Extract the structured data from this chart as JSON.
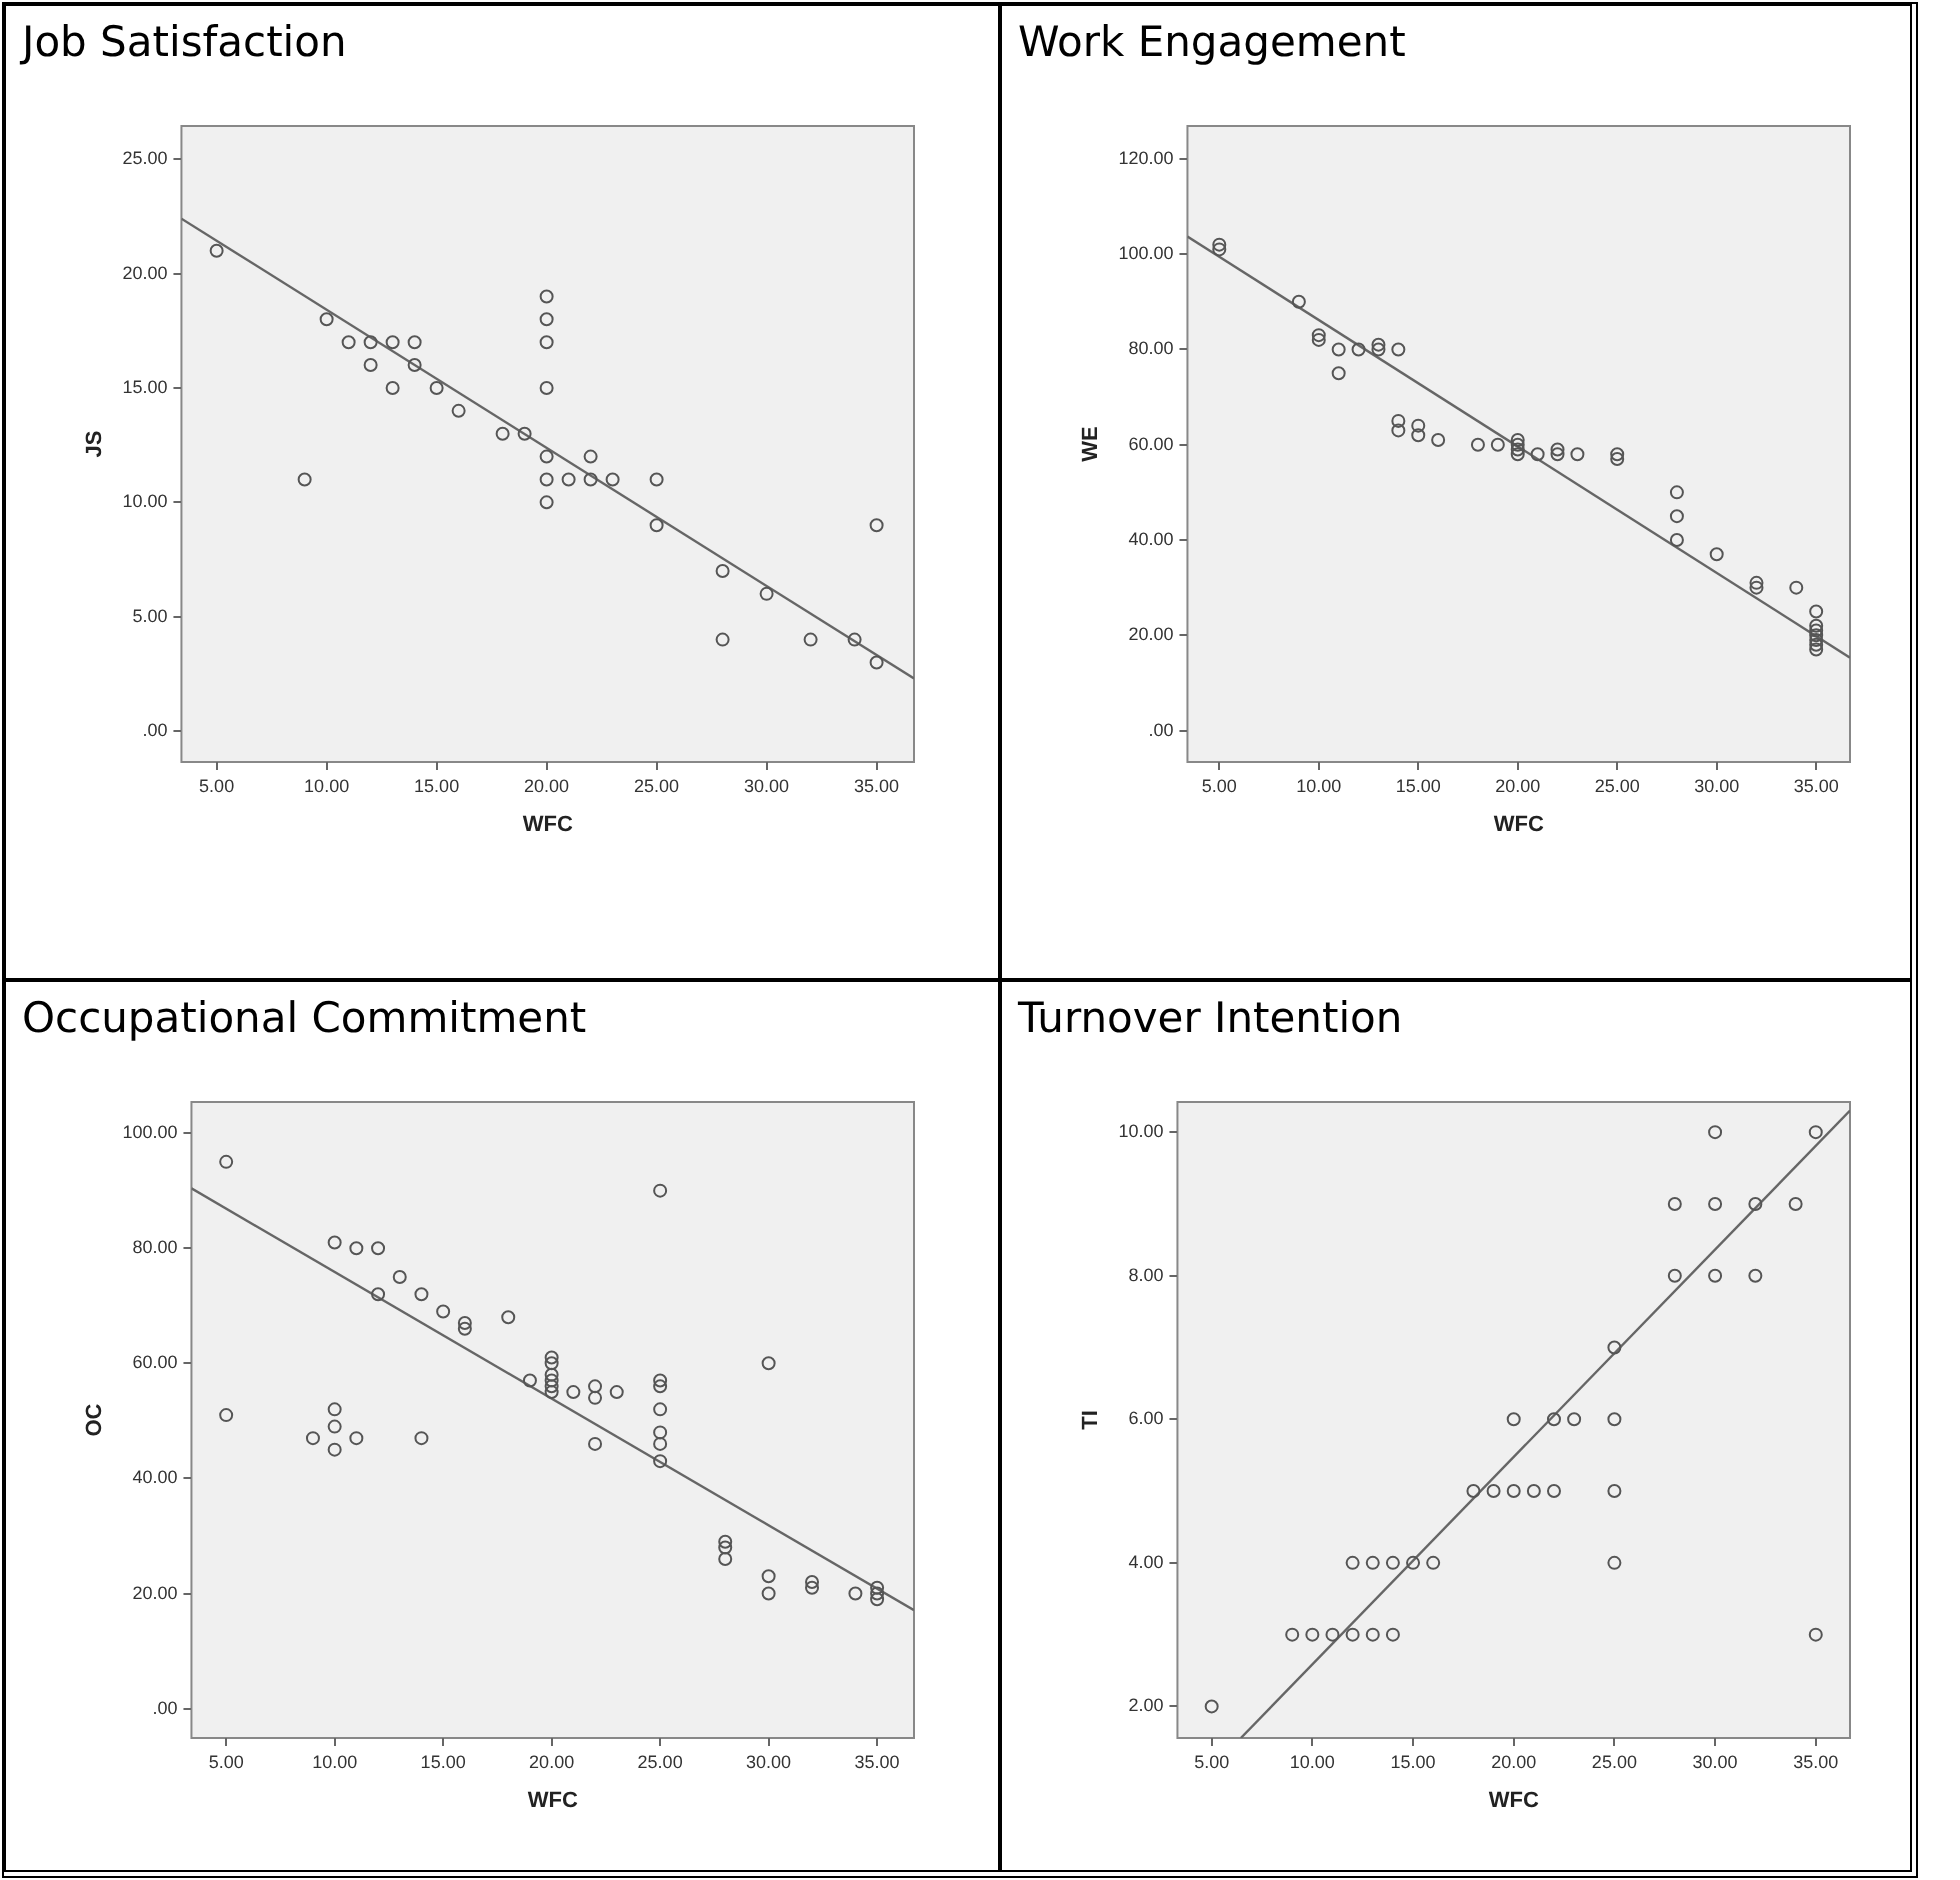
{
  "chart_data": [
    {
      "type": "scatter",
      "title": "Job Satisfaction",
      "xlabel": "WFC",
      "ylabel": "JS",
      "grid": false,
      "legend": false,
      "xlim": [
        3.4,
        36.7
      ],
      "xticks": [
        {
          "value": 5,
          "label": "5.00"
        },
        {
          "value": 10,
          "label": "10.00"
        },
        {
          "value": 15,
          "label": "15.00"
        },
        {
          "value": 20,
          "label": "20.00"
        },
        {
          "value": 25,
          "label": "25.00"
        },
        {
          "value": 30,
          "label": "30.00"
        },
        {
          "value": 35,
          "label": "35.00"
        }
      ],
      "ylim": [
        -1.35,
        26.45
      ],
      "yticks": [
        {
          "value": 0,
          "label": ".00"
        },
        {
          "value": 5,
          "label": "5.00"
        },
        {
          "value": 10,
          "label": "10.00"
        },
        {
          "value": 15,
          "label": "15.00"
        },
        {
          "value": 20,
          "label": "20.00"
        },
        {
          "value": 25,
          "label": "25.00"
        }
      ],
      "series": [
        {
          "marker": "circle",
          "color": "#555555",
          "x": [
            5,
            9,
            10,
            11,
            12,
            12,
            13,
            13,
            14,
            14,
            15,
            16,
            18,
            19,
            20,
            20,
            20,
            20,
            20,
            20,
            20,
            21,
            22,
            22,
            23,
            25,
            25,
            28,
            28,
            30,
            32,
            34,
            35,
            35
          ],
          "values": [
            21,
            11,
            18,
            17,
            17,
            16,
            17,
            15,
            17,
            16,
            15,
            14,
            13,
            13,
            19,
            18,
            17,
            15,
            12,
            11,
            10,
            11,
            12,
            11,
            11,
            11,
            9,
            7,
            4,
            6,
            4,
            4,
            9,
            3
          ]
        },
        {
          "type": "line",
          "marker": "none",
          "color": "#666666",
          "x": [
            3.4,
            36.7
          ],
          "values": [
            22.4,
            2.3
          ]
        }
      ]
    },
    {
      "type": "scatter",
      "title": "Work Engagement",
      "xlabel": "WFC",
      "ylabel": "WE",
      "grid": false,
      "legend": false,
      "xlim": [
        3.4,
        36.7
      ],
      "xticks": [
        {
          "value": 5,
          "label": "5.00"
        },
        {
          "value": 10,
          "label": "10.00"
        },
        {
          "value": 15,
          "label": "15.00"
        },
        {
          "value": 20,
          "label": "20.00"
        },
        {
          "value": 25,
          "label": "25.00"
        },
        {
          "value": 30,
          "label": "30.00"
        },
        {
          "value": 35,
          "label": "35.00"
        }
      ],
      "ylim": [
        -6.6,
        126.9
      ],
      "yticks": [
        {
          "value": 0,
          "label": ".00"
        },
        {
          "value": 20,
          "label": "20.00"
        },
        {
          "value": 40,
          "label": "40.00"
        },
        {
          "value": 60,
          "label": "60.00"
        },
        {
          "value": 80,
          "label": "80.00"
        },
        {
          "value": 100,
          "label": "100.00"
        },
        {
          "value": 120,
          "label": "120.00"
        }
      ],
      "series": [
        {
          "marker": "circle",
          "color": "#555555",
          "x": [
            5,
            5,
            9,
            10,
            10,
            11,
            11,
            12,
            13,
            13,
            14,
            14,
            14,
            15,
            15,
            16,
            18,
            19,
            20,
            20,
            20,
            20,
            21,
            22,
            22,
            23,
            25,
            25,
            28,
            28,
            28,
            30,
            32,
            32,
            34,
            35,
            35,
            35,
            35,
            35,
            35,
            35
          ],
          "values": [
            102,
            101,
            90,
            83,
            82,
            80,
            75,
            80,
            81,
            80,
            80,
            65,
            63,
            64,
            62,
            61,
            60,
            60,
            61,
            60,
            59,
            58,
            58,
            59,
            58,
            58,
            58,
            57,
            50,
            45,
            40,
            37,
            31,
            30,
            30,
            25,
            22,
            21,
            20,
            19,
            18,
            17
          ]
        },
        {
          "type": "line",
          "marker": "none",
          "color": "#666666",
          "x": [
            3.4,
            36.7
          ],
          "values": [
            103.7,
            15.3
          ]
        }
      ]
    },
    {
      "type": "scatter",
      "title": "Occupational Commitment",
      "xlabel": "WFC",
      "ylabel": "OC",
      "grid": false,
      "legend": false,
      "xlim": [
        3.4,
        36.7
      ],
      "xticks": [
        {
          "value": 5,
          "label": "5.00"
        },
        {
          "value": 10,
          "label": "10.00"
        },
        {
          "value": 15,
          "label": "15.00"
        },
        {
          "value": 20,
          "label": "20.00"
        },
        {
          "value": 25,
          "label": "25.00"
        },
        {
          "value": 30,
          "label": "30.00"
        },
        {
          "value": 35,
          "label": "35.00"
        }
      ],
      "ylim": [
        -5.1,
        105.4
      ],
      "yticks": [
        {
          "value": 0,
          "label": ".00"
        },
        {
          "value": 20,
          "label": "20.00"
        },
        {
          "value": 40,
          "label": "40.00"
        },
        {
          "value": 60,
          "label": "60.00"
        },
        {
          "value": 80,
          "label": "80.00"
        },
        {
          "value": 100,
          "label": "100.00"
        }
      ],
      "series": [
        {
          "marker": "circle",
          "color": "#555555",
          "x": [
            5,
            5,
            9,
            10,
            10,
            10,
            10,
            11,
            11,
            12,
            12,
            13,
            14,
            14,
            15,
            16,
            16,
            18,
            19,
            20,
            20,
            20,
            20,
            20,
            20,
            21,
            22,
            22,
            22,
            23,
            25,
            25,
            25,
            25,
            25,
            25,
            25,
            28,
            28,
            28,
            30,
            30,
            30,
            32,
            32,
            34,
            35,
            35,
            35
          ],
          "values": [
            95,
            51,
            47,
            52,
            49,
            45,
            81,
            80,
            47,
            80,
            72,
            75,
            72,
            47,
            69,
            67,
            66,
            68,
            57,
            61,
            60,
            58,
            57,
            56,
            55,
            55,
            56,
            54,
            46,
            55,
            90,
            57,
            56,
            52,
            48,
            46,
            43,
            29,
            28,
            26,
            60,
            23,
            20,
            22,
            21,
            20,
            21,
            20,
            19
          ]
        },
        {
          "type": "line",
          "marker": "none",
          "color": "#666666",
          "x": [
            3.4,
            36.7
          ],
          "values": [
            90.4,
            17.1
          ]
        }
      ]
    },
    {
      "type": "scatter",
      "title": "Turnover Intention",
      "xlabel": "WFC",
      "ylabel": "TI",
      "grid": false,
      "legend": false,
      "xlim": [
        3.3,
        36.7
      ],
      "xticks": [
        {
          "value": 5,
          "label": "5.00"
        },
        {
          "value": 10,
          "label": "10.00"
        },
        {
          "value": 15,
          "label": "15.00"
        },
        {
          "value": 20,
          "label": "20.00"
        },
        {
          "value": 25,
          "label": "25.00"
        },
        {
          "value": 30,
          "label": "30.00"
        },
        {
          "value": 35,
          "label": "35.00"
        }
      ],
      "ylim": [
        1.56,
        10.42
      ],
      "yticks": [
        {
          "value": 2,
          "label": "2.00"
        },
        {
          "value": 4,
          "label": "4.00"
        },
        {
          "value": 6,
          "label": "6.00"
        },
        {
          "value": 8,
          "label": "8.00"
        },
        {
          "value": 10,
          "label": "10.00"
        }
      ],
      "series": [
        {
          "marker": "circle",
          "color": "#555555",
          "x": [
            5,
            9,
            10,
            11,
            12,
            12,
            13,
            13,
            14,
            14,
            15,
            16,
            18,
            19,
            20,
            20,
            21,
            22,
            22,
            23,
            25,
            25,
            25,
            25,
            28,
            28,
            30,
            30,
            30,
            32,
            32,
            34,
            35,
            35
          ],
          "values": [
            2,
            3,
            3,
            3,
            4,
            3,
            4,
            3,
            4,
            3,
            4,
            4,
            5,
            5,
            6,
            5,
            5,
            6,
            5,
            6,
            7,
            6,
            5,
            4,
            9,
            8,
            10,
            9,
            8,
            9,
            8,
            9,
            10,
            3
          ]
        },
        {
          "type": "line",
          "marker": "none",
          "color": "#666666",
          "x": [
            6.45,
            36.7
          ],
          "values": [
            1.56,
            10.3
          ]
        }
      ]
    }
  ]
}
